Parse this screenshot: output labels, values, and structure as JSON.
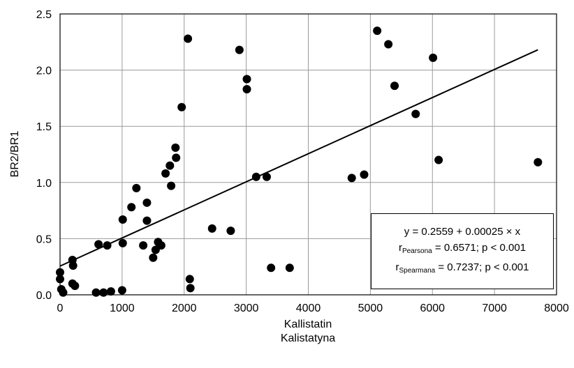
{
  "chart_data": {
    "type": "scatter",
    "xlabel": "Kallistatin",
    "xlabel2": "Kalistatyna",
    "ylabel": "BR2/BR1",
    "xlim": [
      0,
      8000
    ],
    "ylim": [
      0,
      2.5
    ],
    "x_ticks": [
      "0",
      "1000",
      "2000",
      "3000",
      "4000",
      "5000",
      "6000",
      "7000",
      "8000"
    ],
    "y_ticks": [
      "0.0",
      "0.5",
      "1.0",
      "1.5",
      "2.0",
      "2.5"
    ],
    "grid": true,
    "points": [
      {
        "x": 0,
        "y": 0.2
      },
      {
        "x": 0,
        "y": 0.14
      },
      {
        "x": 20,
        "y": 0.05
      },
      {
        "x": 50,
        "y": 0.02
      },
      {
        "x": 200,
        "y": 0.31
      },
      {
        "x": 210,
        "y": 0.26
      },
      {
        "x": 200,
        "y": 0.1
      },
      {
        "x": 240,
        "y": 0.08
      },
      {
        "x": 580,
        "y": 0.02
      },
      {
        "x": 620,
        "y": 0.45
      },
      {
        "x": 700,
        "y": 0.02
      },
      {
        "x": 760,
        "y": 0.44
      },
      {
        "x": 820,
        "y": 0.03
      },
      {
        "x": 1000,
        "y": 0.04
      },
      {
        "x": 1010,
        "y": 0.67
      },
      {
        "x": 1010,
        "y": 0.46
      },
      {
        "x": 1150,
        "y": 0.78
      },
      {
        "x": 1230,
        "y": 0.95
      },
      {
        "x": 1340,
        "y": 0.44
      },
      {
        "x": 1400,
        "y": 0.82
      },
      {
        "x": 1400,
        "y": 0.66
      },
      {
        "x": 1500,
        "y": 0.33
      },
      {
        "x": 1540,
        "y": 0.4
      },
      {
        "x": 1580,
        "y": 0.47
      },
      {
        "x": 1630,
        "y": 0.44
      },
      {
        "x": 1700,
        "y": 1.08
      },
      {
        "x": 1770,
        "y": 1.15
      },
      {
        "x": 1790,
        "y": 0.97
      },
      {
        "x": 1860,
        "y": 1.31
      },
      {
        "x": 1870,
        "y": 1.22
      },
      {
        "x": 1960,
        "y": 1.67
      },
      {
        "x": 2060,
        "y": 2.28
      },
      {
        "x": 2090,
        "y": 0.14
      },
      {
        "x": 2100,
        "y": 0.06
      },
      {
        "x": 2450,
        "y": 0.59
      },
      {
        "x": 2750,
        "y": 0.57
      },
      {
        "x": 2890,
        "y": 2.18
      },
      {
        "x": 3010,
        "y": 1.92
      },
      {
        "x": 3010,
        "y": 1.83
      },
      {
        "x": 3160,
        "y": 1.05
      },
      {
        "x": 3330,
        "y": 1.05
      },
      {
        "x": 3400,
        "y": 0.24
      },
      {
        "x": 3700,
        "y": 0.24
      },
      {
        "x": 4700,
        "y": 1.04
      },
      {
        "x": 4900,
        "y": 1.07
      },
      {
        "x": 5110,
        "y": 2.35
      },
      {
        "x": 5290,
        "y": 2.23
      },
      {
        "x": 5390,
        "y": 1.86
      },
      {
        "x": 5730,
        "y": 1.61
      },
      {
        "x": 6010,
        "y": 2.11
      },
      {
        "x": 6100,
        "y": 1.2
      },
      {
        "x": 7700,
        "y": 1.18
      }
    ],
    "fit_line": {
      "intercept": 0.2559,
      "slope": 0.00025,
      "x_range": [
        0,
        7700
      ]
    },
    "annotation": {
      "equation": "y = 0.2559 + 0.00025 × x",
      "pearson_prefix": "r",
      "pearson_sub": "Pearsona",
      "pearson_rest": " = 0.6571; p < 0.001",
      "spearman_prefix": "r",
      "spearman_sub": "Spearmana",
      "spearman_rest": " = 0.7237; p < 0.001"
    }
  }
}
